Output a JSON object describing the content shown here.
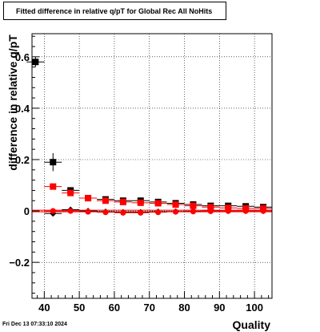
{
  "title": "Fitted difference in relative q/pT for Global Rec All NoHits",
  "timestamp": "Fri Dec 13 07:33:10 2024",
  "chart_data": {
    "type": "scatter",
    "title": "Fitted difference in relative q/pT for Global Rec All NoHits",
    "xlabel": "Quality",
    "ylabel": "difference in relative q/pT",
    "xlim": [
      36.5,
      105
    ],
    "ylim": [
      -0.34,
      0.69
    ],
    "grid": true,
    "x_ticks": [
      40,
      50,
      60,
      70,
      80,
      90,
      100
    ],
    "y_ticks": [
      -0.2,
      0,
      0.2,
      0.4,
      0.6
    ],
    "x_tick_labels": [
      "40",
      "50",
      "60",
      "70",
      "80",
      "90",
      "100"
    ],
    "y_tick_labels": [
      "−0.2",
      "0",
      "0.2",
      "0.4",
      "0.6"
    ],
    "x_error": 2.5,
    "series": [
      {
        "marker": "square",
        "color": "#000000",
        "x": [
          37.5,
          42.5,
          47.5,
          52.5,
          57.5,
          62.5,
          67.5,
          72.5,
          77.5,
          82.5,
          87.5,
          92.5,
          97.5,
          102.5
        ],
        "y": [
          0.58,
          0.19,
          0.08,
          0.05,
          0.045,
          0.04,
          0.04,
          0.035,
          0.03,
          0.025,
          0.02,
          0.02,
          0.018,
          0.015
        ],
        "yerr": [
          0.02,
          0.035,
          0.01,
          0.008,
          0.006,
          0.005,
          0.005,
          0.005,
          0.004,
          0.004,
          0.004,
          0.004,
          0.004,
          0.004
        ]
      },
      {
        "marker": "diamond",
        "color": "#000000",
        "x": [
          42.5,
          47.5,
          52.5,
          57.5,
          62.5,
          67.5,
          72.5,
          77.5,
          82.5,
          87.5,
          92.5,
          97.5,
          102.5
        ],
        "y": [
          -0.01,
          0.005,
          0.0,
          -0.003,
          -0.005,
          -0.005,
          -0.003,
          -0.002,
          -0.001,
          0.0,
          0.0,
          0.0,
          0.0
        ],
        "yerr": [
          0.01,
          0.006,
          0.005,
          0.004,
          0.004,
          0.004,
          0.003,
          0.003,
          0.003,
          0.003,
          0.003,
          0.003,
          0.003
        ]
      },
      {
        "marker": "square",
        "color": "#ff0000",
        "x": [
          42.5,
          47.5,
          52.5,
          57.5,
          62.5,
          67.5,
          72.5,
          77.5,
          82.5,
          87.5,
          92.5,
          97.5,
          102.5
        ],
        "y": [
          0.095,
          0.07,
          0.05,
          0.04,
          0.035,
          0.032,
          0.03,
          0.025,
          0.02,
          0.015,
          0.012,
          0.01,
          0.01
        ],
        "yerr": [
          0.006,
          0.005,
          0.004,
          0.004,
          0.003,
          0.003,
          0.003,
          0.003,
          0.003,
          0.003,
          0.003,
          0.003,
          0.003
        ]
      },
      {
        "marker": "circle",
        "color": "#ff0000",
        "x": [
          42.5,
          47.5,
          52.5,
          57.5,
          62.5,
          67.5,
          72.5,
          77.5,
          82.5,
          87.5,
          92.5,
          97.5,
          102.5
        ],
        "y": [
          0.0,
          0.0,
          -0.003,
          -0.005,
          -0.007,
          -0.007,
          -0.005,
          -0.003,
          -0.002,
          -0.001,
          0.0,
          0.0,
          0.0
        ],
        "yerr": [
          0.005,
          0.004,
          0.004,
          0.003,
          0.003,
          0.003,
          0.003,
          0.003,
          0.003,
          0.003,
          0.003,
          0.003,
          0.003
        ]
      }
    ]
  }
}
